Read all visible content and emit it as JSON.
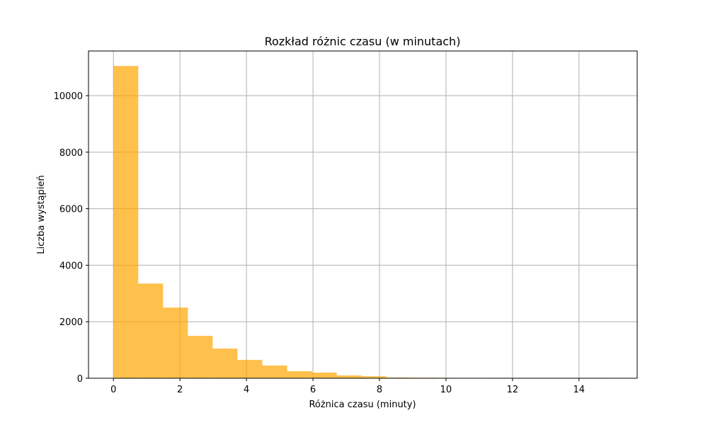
{
  "chart_data": {
    "type": "bar",
    "title": "Rozkład różnic czasu (w minutach)",
    "xlabel": "Różnica czasu (minuty)",
    "ylabel": "Liczba wystąpień",
    "xlim": [
      -0.75,
      15.75
    ],
    "ylim": [
      0,
      11580
    ],
    "x_ticks": [
      0,
      2,
      4,
      6,
      8,
      10,
      12,
      14
    ],
    "y_ticks": [
      0,
      2000,
      4000,
      6000,
      8000,
      10000
    ],
    "grid": true,
    "bar_color": "#ffa500",
    "bar_opacity": 0.7,
    "bins": [
      {
        "x0": 0.0,
        "x1": 0.746,
        "value": 11050
      },
      {
        "x0": 0.746,
        "x1": 1.492,
        "value": 3350
      },
      {
        "x0": 1.492,
        "x1": 2.238,
        "value": 2500
      },
      {
        "x0": 2.238,
        "x1": 2.984,
        "value": 1500
      },
      {
        "x0": 2.984,
        "x1": 3.73,
        "value": 1050
      },
      {
        "x0": 3.73,
        "x1": 4.476,
        "value": 650
      },
      {
        "x0": 4.476,
        "x1": 5.222,
        "value": 450
      },
      {
        "x0": 5.222,
        "x1": 5.968,
        "value": 250
      },
      {
        "x0": 5.968,
        "x1": 6.714,
        "value": 200
      },
      {
        "x0": 6.714,
        "x1": 7.46,
        "value": 100
      },
      {
        "x0": 7.46,
        "x1": 8.206,
        "value": 70
      },
      {
        "x0": 8.206,
        "x1": 8.952,
        "value": 25
      },
      {
        "x0": 8.952,
        "x1": 9.698,
        "value": 20
      },
      {
        "x0": 9.698,
        "x1": 10.444,
        "value": 15
      },
      {
        "x0": 10.444,
        "x1": 11.19,
        "value": 5
      },
      {
        "x0": 11.19,
        "x1": 11.936,
        "value": 15
      },
      {
        "x0": 11.936,
        "x1": 12.682,
        "value": 15
      },
      {
        "x0": 12.682,
        "x1": 13.428,
        "value": 15
      },
      {
        "x0": 13.428,
        "x1": 14.174,
        "value": 15
      },
      {
        "x0": 14.174,
        "x1": 14.92,
        "value": 15
      }
    ]
  }
}
